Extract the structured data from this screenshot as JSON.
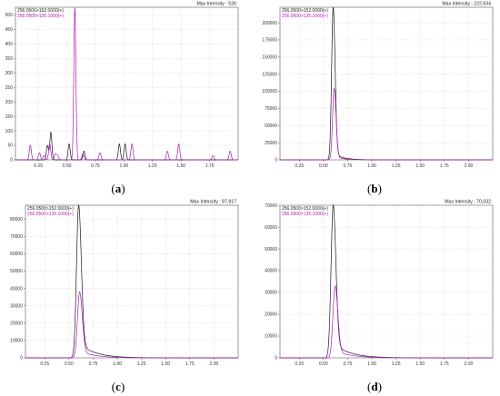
{
  "colors": {
    "black_series": "#1a1a1a",
    "magenta_series": "#b01bb8",
    "grid": "#c9c9c9",
    "axis": "#555555"
  },
  "panels": [
    {
      "label_open": "(",
      "label_letter": "a",
      "label_close": ")",
      "max_label": "Max Intensity :",
      "max_value": "526",
      "legend": [
        "256.0500>152.0000(+)",
        "256.0500>135.1000(+)"
      ]
    },
    {
      "label_open": "(",
      "label_letter": "b",
      "label_close": ")",
      "max_label": "Max Intensity :",
      "max_value": "222,634",
      "legend": [
        "256.0500>152.0000(+)",
        "256.0500>135.1000(+)"
      ]
    },
    {
      "label_open": "(",
      "label_letter": "c",
      "label_close": ")",
      "max_label": "Max Intensity :",
      "max_value": "87,917",
      "legend": [
        "256.0500>152.0000(+)",
        "256.0500>135.1000(+)"
      ]
    },
    {
      "label_open": "(",
      "label_letter": "d",
      "label_close": ")",
      "max_label": "Max Intensity :",
      "max_value": "70,032",
      "legend": [
        "256.0500>152.0000(+)",
        "256.0500>135.1000(+)"
      ]
    }
  ],
  "chart_data": [
    {
      "type": "line",
      "title": "",
      "xlabel": "",
      "ylabel": "",
      "xlim": [
        0.05,
        2.0
      ],
      "ylim": [
        0,
        526
      ],
      "x_ticks": [
        0.25,
        0.5,
        0.75,
        1.0,
        1.25,
        1.5,
        1.75
      ],
      "x_tick_labels": [
        "0.25",
        "0.50",
        "0.75",
        "1.00",
        "1.25",
        "1.50",
        "1.75"
      ],
      "y_ticks": [
        0,
        50,
        100,
        150,
        200,
        250,
        300,
        350,
        400,
        450,
        500
      ],
      "y_tick_labels": [
        "0",
        "50",
        "100",
        "150",
        "200",
        "250",
        "300",
        "350",
        "400",
        "450",
        "500"
      ],
      "grid": true,
      "legend_position": "top-left",
      "series": [
        {
          "name": "256.0500>152.0000(+)",
          "color": "#1a1a1a",
          "peaks": [
            [
              0.33,
              50
            ],
            [
              0.36,
              95
            ],
            [
              0.52,
              55
            ],
            [
              0.65,
              30
            ],
            [
              0.96,
              55
            ],
            [
              1.01,
              55
            ]
          ]
        },
        {
          "name": "256.0500>135.1000(+)",
          "color": "#b01bb8",
          "peaks": [
            [
              0.18,
              50
            ],
            [
              0.26,
              25
            ],
            [
              0.3,
              15
            ],
            [
              0.35,
              55
            ],
            [
              0.4,
              20
            ],
            [
              0.42,
              15
            ],
            [
              0.57,
              526
            ],
            [
              0.64,
              20
            ],
            [
              0.79,
              25
            ],
            [
              1.07,
              55
            ],
            [
              1.38,
              30
            ],
            [
              1.48,
              55
            ],
            [
              1.78,
              15
            ],
            [
              1.93,
              30
            ]
          ]
        }
      ]
    },
    {
      "type": "line",
      "title": "",
      "xlabel": "",
      "ylabel": "",
      "xlim": [
        0.05,
        2.25
      ],
      "ylim": [
        0,
        222634
      ],
      "x_ticks": [
        0.25,
        0.5,
        0.75,
        1.0,
        1.25,
        1.5,
        1.75,
        2.0
      ],
      "x_tick_labels": [
        "0.25",
        "0.50",
        "0.75",
        "1.00",
        "1.25",
        "1.50",
        "1.75",
        "2.00"
      ],
      "y_ticks": [
        0,
        25000,
        50000,
        75000,
        100000,
        125000,
        150000,
        175000,
        200000
      ],
      "y_tick_labels": [
        "0",
        "25000",
        "50000",
        "75000",
        "100000",
        "125000",
        "150000",
        "175000",
        "200000"
      ],
      "grid": true,
      "legend_position": "top-left",
      "series": [
        {
          "name": "256.0500>152.0000(+)",
          "color": "#1a1a1a",
          "peak_x": 0.6,
          "peak_y": 222634
        },
        {
          "name": "256.0500>135.1000(+)",
          "color": "#b01bb8",
          "peak_x": 0.61,
          "peak_y": 104000
        }
      ]
    },
    {
      "type": "line",
      "title": "",
      "xlabel": "",
      "ylabel": "",
      "xlim": [
        0.05,
        2.25
      ],
      "ylim": [
        0,
        87917
      ],
      "x_ticks": [
        0.25,
        0.5,
        0.75,
        1.0,
        1.25,
        1.5,
        1.75,
        2.0
      ],
      "x_tick_labels": [
        "0.25",
        "0.50",
        "0.75",
        "1.00",
        "1.25",
        "1.50",
        "1.75",
        "2.00"
      ],
      "y_ticks": [
        0,
        10000,
        20000,
        30000,
        40000,
        50000,
        60000,
        70000,
        80000
      ],
      "y_tick_labels": [
        "0",
        "10000",
        "20000",
        "30000",
        "40000",
        "50000",
        "60000",
        "70000",
        "80000"
      ],
      "grid": true,
      "legend_position": "top-left",
      "series": [
        {
          "name": "256.0500>152.0000(+)",
          "color": "#1a1a1a",
          "peak_x": 0.6,
          "peak_y": 87917
        },
        {
          "name": "256.0500>135.1000(+)",
          "color": "#b01bb8",
          "peak_x": 0.61,
          "peak_y": 38000
        }
      ]
    },
    {
      "type": "line",
      "title": "",
      "xlabel": "",
      "ylabel": "",
      "xlim": [
        0.05,
        2.25
      ],
      "ylim": [
        0,
        70032
      ],
      "x_ticks": [
        0.25,
        0.5,
        0.75,
        1.0,
        1.25,
        1.5,
        1.75,
        2.0
      ],
      "x_tick_labels": [
        "0.25",
        "0.50",
        "0.75",
        "1.00",
        "1.25",
        "1.50",
        "1.75",
        "2.00"
      ],
      "y_ticks": [
        0,
        10000,
        20000,
        30000,
        40000,
        50000,
        60000,
        70000
      ],
      "y_tick_labels": [
        "0",
        "10000",
        "20000",
        "30000",
        "40000",
        "50000",
        "60000",
        "70000"
      ],
      "grid": true,
      "legend_position": "top-left",
      "series": [
        {
          "name": "256.0500>152.0000(+)",
          "color": "#1a1a1a",
          "peak_x": 0.6,
          "peak_y": 70032
        },
        {
          "name": "256.0500>135.1000(+)",
          "color": "#b01bb8",
          "peak_x": 0.62,
          "peak_y": 33000
        }
      ]
    }
  ]
}
